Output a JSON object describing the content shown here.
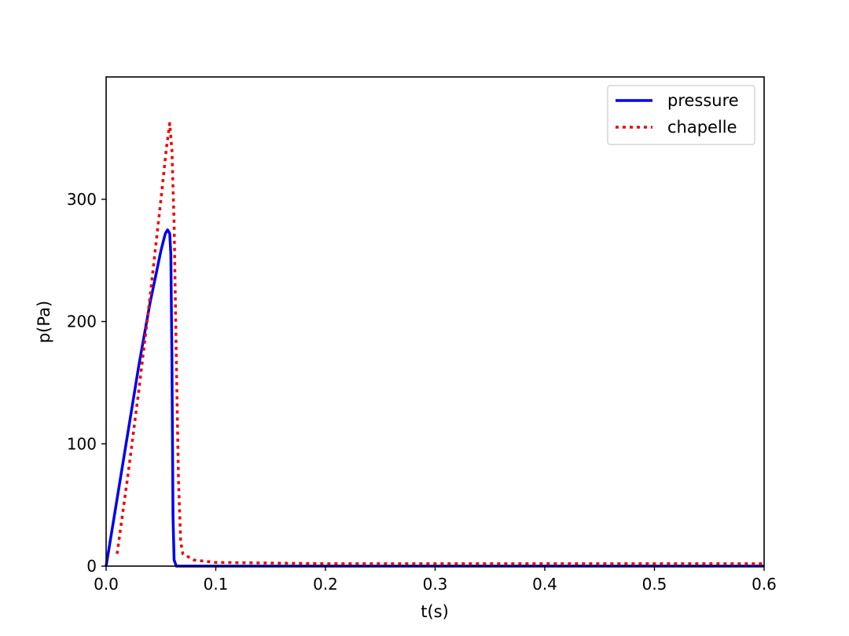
{
  "chart_data": {
    "type": "line",
    "xlabel": "t(s)",
    "ylabel": "p(Pa)",
    "xlim": [
      0,
      0.6
    ],
    "ylim": [
      0,
      400
    ],
    "x_ticks": [
      0.0,
      0.1,
      0.2,
      0.3,
      0.4,
      0.5,
      0.6
    ],
    "x_tick_labels": [
      "0.0",
      "0.1",
      "0.2",
      "0.3",
      "0.4",
      "0.5",
      "0.6"
    ],
    "y_ticks": [
      0,
      100,
      200,
      300
    ],
    "y_tick_labels": [
      "0",
      "100",
      "200",
      "300"
    ],
    "grid": false,
    "legend_position": "top-right",
    "series": [
      {
        "name": "pressure",
        "color": "#0000ee",
        "style": "solid",
        "points": [
          [
            0.0,
            0
          ],
          [
            0.01,
            55
          ],
          [
            0.02,
            110
          ],
          [
            0.03,
            165
          ],
          [
            0.04,
            215
          ],
          [
            0.05,
            258
          ],
          [
            0.054,
            272
          ],
          [
            0.056,
            275
          ],
          [
            0.058,
            272
          ],
          [
            0.059,
            255
          ],
          [
            0.06,
            170
          ],
          [
            0.061,
            40
          ],
          [
            0.062,
            5
          ],
          [
            0.064,
            0
          ],
          [
            0.1,
            0
          ],
          [
            0.2,
            0
          ],
          [
            0.3,
            0
          ],
          [
            0.4,
            0
          ],
          [
            0.5,
            0
          ],
          [
            0.6,
            0
          ]
        ]
      },
      {
        "name": "chapelle",
        "color": "#ee0000",
        "style": "dotted",
        "points": [
          [
            0.01,
            10
          ],
          [
            0.02,
            75
          ],
          [
            0.03,
            145
          ],
          [
            0.04,
            220
          ],
          [
            0.05,
            300
          ],
          [
            0.055,
            342
          ],
          [
            0.058,
            362
          ],
          [
            0.06,
            340
          ],
          [
            0.062,
            280
          ],
          [
            0.064,
            170
          ],
          [
            0.066,
            70
          ],
          [
            0.068,
            20
          ],
          [
            0.07,
            10
          ],
          [
            0.08,
            5
          ],
          [
            0.1,
            3
          ],
          [
            0.2,
            2
          ],
          [
            0.3,
            2
          ],
          [
            0.4,
            2
          ],
          [
            0.5,
            2
          ],
          [
            0.6,
            2
          ]
        ]
      }
    ]
  }
}
